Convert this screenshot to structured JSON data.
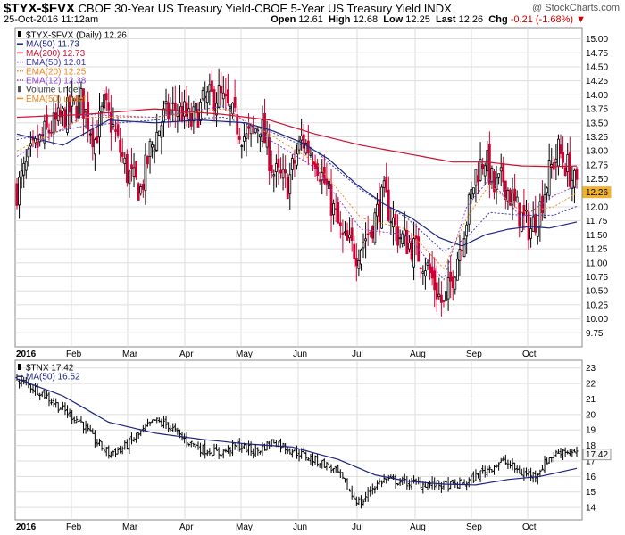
{
  "header": {
    "symbol": "$TYX-$FVX",
    "description": "CBOE 30-Year US Treasury Yield-CBOE 5-Year US Treasury Yield INDX",
    "date": "25-Oct-2016 11:12am",
    "watermark": "@ StockCharts.com",
    "open_label": "Open",
    "open": "12.61",
    "high_label": "High",
    "high": "12.68",
    "low_label": "Low",
    "low": "12.25",
    "last_label": "Last",
    "last": "12.26",
    "chg_label": "Chg",
    "chg": "-0.21 (-1.68%)",
    "chg_color": "#cc0000"
  },
  "colors": {
    "up": "#000000",
    "down": "#cc0033",
    "ma50": "#1a237e",
    "ma200": "#cc1133",
    "ema50": "#3a3aaa",
    "ema20": "#ee8822",
    "ema12": "#8844cc",
    "grid": "#dddddd",
    "last_marker": "#f0b030"
  },
  "chart_data": [
    {
      "type": "candlestick",
      "name": "TYX-FVX spread",
      "ylim": [
        9.5,
        15.2
      ],
      "yticks": [
        9.75,
        10.0,
        10.25,
        10.5,
        10.75,
        11.0,
        11.25,
        11.5,
        11.75,
        12.0,
        12.25,
        12.5,
        12.75,
        13.0,
        13.25,
        13.5,
        13.75,
        14.0,
        14.25,
        14.5,
        14.75,
        15.0
      ],
      "xlabels": [
        "2016",
        "Feb",
        "Mar",
        "Apr",
        "May",
        "Jun",
        "Jul",
        "Aug",
        "Sep",
        "Oct"
      ],
      "legend": [
        {
          "label": "$TYX-$FVX (Daily) 12.26",
          "color": "#000000",
          "style": "candle"
        },
        {
          "label": "MA(50) 11.73",
          "color": "#1a237e",
          "style": "solid"
        },
        {
          "label": "MA(200) 12.73",
          "color": "#cc1133",
          "style": "solid"
        },
        {
          "label": "EMA(50) 12.01",
          "color": "#3a3aaa",
          "style": "dotted"
        },
        {
          "label": "EMA(20) 12.25",
          "color": "#ee8822",
          "style": "dotted"
        },
        {
          "label": "EMA(12) 12.38",
          "color": "#8844cc",
          "style": "dotted"
        },
        {
          "label": "Volume undef",
          "color": "#555555",
          "style": "bars"
        },
        {
          "label": "EMA(50) undef",
          "color": "#ee8822",
          "style": "solid"
        }
      ],
      "close_path": [
        [
          0,
          12.3
        ],
        [
          6,
          12.9
        ],
        [
          12,
          13.3
        ],
        [
          20,
          13.6
        ],
        [
          28,
          13.9
        ],
        [
          34,
          13.2
        ],
        [
          38,
          13.8
        ],
        [
          42,
          13.4
        ],
        [
          48,
          12.6
        ],
        [
          54,
          12.3
        ],
        [
          58,
          13.0
        ],
        [
          64,
          13.6
        ],
        [
          70,
          13.8
        ],
        [
          76,
          13.5
        ],
        [
          82,
          13.9
        ],
        [
          88,
          14.0
        ],
        [
          94,
          13.6
        ],
        [
          100,
          13.2
        ],
        [
          106,
          13.5
        ],
        [
          112,
          12.6
        ],
        [
          118,
          12.4
        ],
        [
          124,
          13.2
        ],
        [
          130,
          12.9
        ],
        [
          136,
          12.2
        ],
        [
          142,
          11.4
        ],
        [
          148,
          11.2
        ],
        [
          154,
          11.6
        ],
        [
          160,
          12.2
        ],
        [
          166,
          11.5
        ],
        [
          172,
          11.3
        ],
        [
          178,
          11.0
        ],
        [
          182,
          10.6
        ],
        [
          186,
          10.2
        ],
        [
          190,
          10.8
        ],
        [
          196,
          11.8
        ],
        [
          200,
          12.6
        ],
        [
          204,
          12.9
        ],
        [
          208,
          12.3
        ],
        [
          212,
          12.5
        ],
        [
          216,
          12.1
        ],
        [
          220,
          11.8
        ],
        [
          224,
          11.6
        ],
        [
          228,
          12.0
        ],
        [
          232,
          12.6
        ],
        [
          236,
          13.0
        ],
        [
          240,
          12.7
        ],
        [
          244,
          12.3
        ]
      ],
      "ma50_path": [
        [
          0,
          13.3
        ],
        [
          20,
          13.1
        ],
        [
          40,
          13.55
        ],
        [
          60,
          13.5
        ],
        [
          80,
          13.55
        ],
        [
          100,
          13.5
        ],
        [
          112,
          13.35
        ],
        [
          124,
          13.15
        ],
        [
          136,
          12.85
        ],
        [
          148,
          12.4
        ],
        [
          160,
          12.05
        ],
        [
          172,
          11.8
        ],
        [
          184,
          11.45
        ],
        [
          194,
          11.3
        ],
        [
          204,
          11.5
        ],
        [
          214,
          11.6
        ],
        [
          224,
          11.65
        ],
        [
          232,
          11.62
        ],
        [
          244,
          11.73
        ]
      ],
      "ma200_path": [
        [
          0,
          13.6
        ],
        [
          30,
          13.65
        ],
        [
          60,
          13.75
        ],
        [
          90,
          13.65
        ],
        [
          110,
          13.55
        ],
        [
          130,
          13.3
        ],
        [
          150,
          13.1
        ],
        [
          170,
          12.95
        ],
        [
          190,
          12.8
        ],
        [
          205,
          12.8
        ],
        [
          220,
          12.73
        ],
        [
          234,
          12.72
        ],
        [
          244,
          12.73
        ]
      ],
      "ema50_path": [
        [
          0,
          13.2
        ],
        [
          30,
          13.45
        ],
        [
          60,
          13.55
        ],
        [
          90,
          13.6
        ],
        [
          110,
          13.35
        ],
        [
          130,
          13.0
        ],
        [
          150,
          12.3
        ],
        [
          170,
          11.8
        ],
        [
          186,
          11.2
        ],
        [
          196,
          11.45
        ],
        [
          206,
          11.9
        ],
        [
          220,
          11.85
        ],
        [
          234,
          11.85
        ],
        [
          244,
          12.01
        ]
      ],
      "ema20_path": [
        [
          0,
          13.0
        ],
        [
          30,
          13.6
        ],
        [
          60,
          13.6
        ],
        [
          90,
          13.75
        ],
        [
          110,
          13.3
        ],
        [
          130,
          12.8
        ],
        [
          150,
          11.8
        ],
        [
          170,
          11.6
        ],
        [
          186,
          10.9
        ],
        [
          196,
          11.8
        ],
        [
          206,
          12.4
        ],
        [
          220,
          11.9
        ],
        [
          234,
          12.0
        ],
        [
          244,
          12.25
        ]
      ],
      "ema12_path": [
        [
          0,
          12.9
        ],
        [
          30,
          13.65
        ],
        [
          60,
          13.6
        ],
        [
          90,
          13.8
        ],
        [
          110,
          13.2
        ],
        [
          130,
          12.7
        ],
        [
          150,
          11.6
        ],
        [
          170,
          11.5
        ],
        [
          186,
          10.7
        ],
        [
          196,
          12.0
        ],
        [
          206,
          12.5
        ],
        [
          220,
          11.8
        ],
        [
          234,
          12.2
        ],
        [
          244,
          12.38
        ]
      ],
      "last": {
        "value": 12.26,
        "label": "12.26"
      }
    },
    {
      "type": "line",
      "name": "TNX",
      "ylim": [
        13.2,
        23.5
      ],
      "yticks": [
        14,
        15,
        16,
        17,
        18,
        19,
        20,
        21,
        22,
        23
      ],
      "xlabels": [
        "2016",
        "Feb",
        "Mar",
        "Apr",
        "May",
        "Jun",
        "Jul",
        "Aug",
        "Sep",
        "Oct"
      ],
      "legend": [
        {
          "label": "$TNX 17.42",
          "color": "#000000",
          "style": "bars"
        },
        {
          "label": "MA(50) 16.52",
          "color": "#1a237e",
          "style": "solid"
        }
      ],
      "close_path": [
        [
          0,
          22.3
        ],
        [
          10,
          21.5
        ],
        [
          20,
          20.3
        ],
        [
          28,
          19.5
        ],
        [
          34,
          18.3
        ],
        [
          40,
          17.5
        ],
        [
          46,
          17.8
        ],
        [
          54,
          18.8
        ],
        [
          60,
          19.6
        ],
        [
          66,
          19.3
        ],
        [
          72,
          18.5
        ],
        [
          80,
          17.8
        ],
        [
          88,
          17.5
        ],
        [
          96,
          18.0
        ],
        [
          104,
          17.6
        ],
        [
          112,
          18.3
        ],
        [
          118,
          17.8
        ],
        [
          126,
          17.3
        ],
        [
          134,
          16.8
        ],
        [
          140,
          16.2
        ],
        [
          146,
          14.8
        ],
        [
          150,
          14.2
        ],
        [
          154,
          15.2
        ],
        [
          160,
          15.8
        ],
        [
          170,
          15.6
        ],
        [
          180,
          15.5
        ],
        [
          190,
          15.4
        ],
        [
          196,
          15.6
        ],
        [
          204,
          16.4
        ],
        [
          212,
          17.0
        ],
        [
          220,
          16.2
        ],
        [
          226,
          16.1
        ],
        [
          232,
          17.2
        ],
        [
          238,
          17.7
        ],
        [
          244,
          17.42
        ]
      ],
      "ma50_path": [
        [
          0,
          22.3
        ],
        [
          20,
          21.2
        ],
        [
          40,
          19.5
        ],
        [
          60,
          18.8
        ],
        [
          80,
          18.4
        ],
        [
          100,
          18.1
        ],
        [
          120,
          17.9
        ],
        [
          140,
          17.1
        ],
        [
          156,
          16.1
        ],
        [
          170,
          15.7
        ],
        [
          186,
          15.5
        ],
        [
          200,
          15.45
        ],
        [
          214,
          15.8
        ],
        [
          228,
          16.0
        ],
        [
          244,
          16.52
        ]
      ],
      "last": {
        "value": 17.42,
        "label": "17.42"
      }
    }
  ]
}
